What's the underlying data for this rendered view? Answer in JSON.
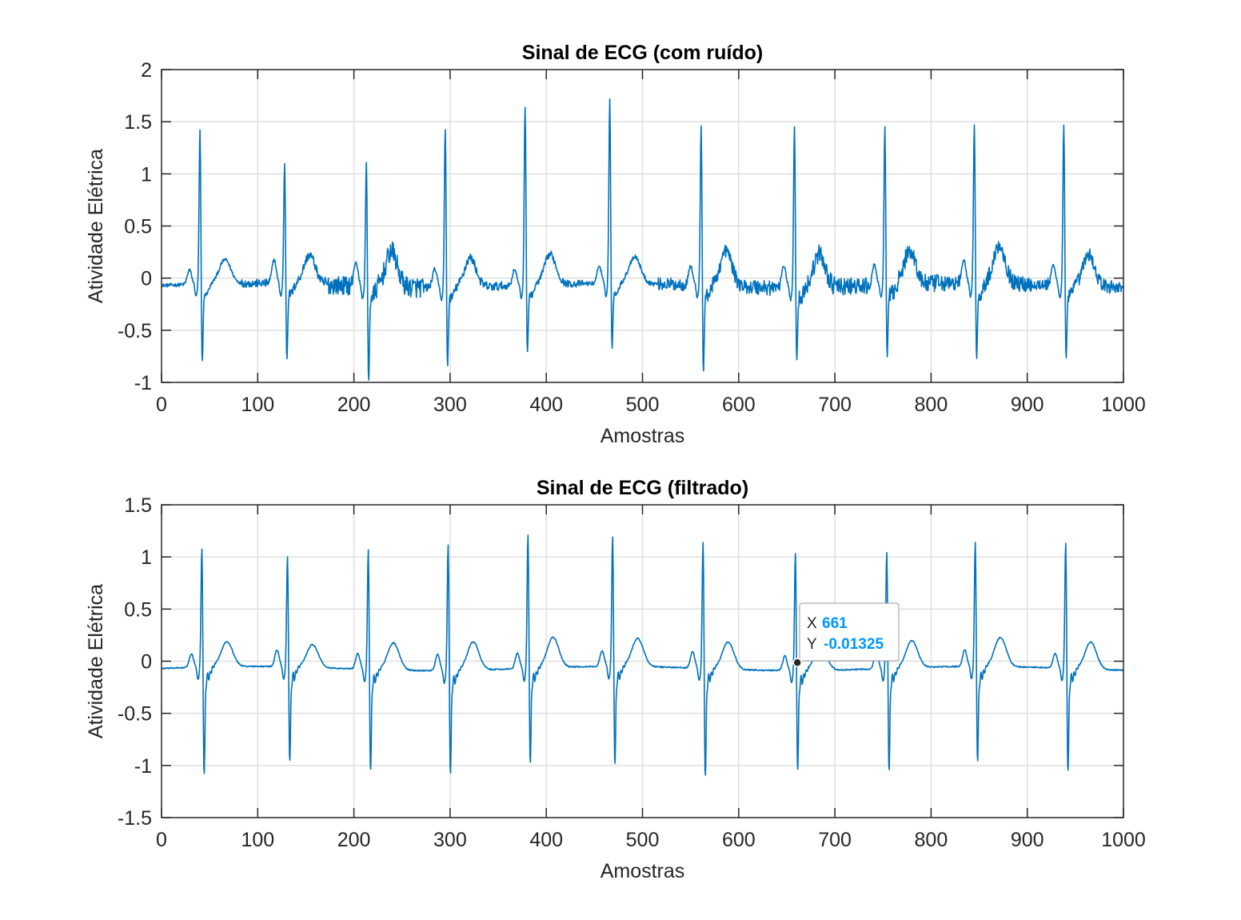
{
  "colors": {
    "series": "#0072BD",
    "datatip_value": "#0095FF",
    "axes": "#262626",
    "grid": "#dfdfdf"
  },
  "chart_data": [
    {
      "type": "line",
      "title": "Sinal de ECG (com ruído)",
      "xlabel": "Amostras",
      "ylabel": "Atividade Elétrica",
      "xlim": [
        0,
        1000
      ],
      "ylim": [
        -1,
        2
      ],
      "xticks": [
        0,
        100,
        200,
        300,
        400,
        500,
        600,
        700,
        800,
        900,
        1000
      ],
      "yticks": [
        -1,
        -0.5,
        0,
        0.5,
        1,
        1.5,
        2
      ],
      "xtick_labels": [
        "0",
        "100",
        "200",
        "300",
        "400",
        "500",
        "600",
        "700",
        "800",
        "900",
        "1000"
      ],
      "ytick_labels": [
        "-1",
        "-0.5",
        "0",
        "0.5",
        "1",
        "1.5",
        "2"
      ],
      "grid": true,
      "noisy": true,
      "beats": [
        {
          "r": 40,
          "peak": 1.47,
          "s": -0.82,
          "q": 0.14,
          "t": 0.23,
          "noise": 0.01
        },
        {
          "r": 128,
          "peak": 1.14,
          "s": -0.78,
          "q": 0.23,
          "t": 0.28,
          "noise": 0.04
        },
        {
          "r": 213,
          "peak": 1.18,
          "s": -0.96,
          "q": 0.23,
          "t": 0.34,
          "noise": 0.09
        },
        {
          "r": 295,
          "peak": 1.53,
          "s": -0.82,
          "q": 0.18,
          "t": 0.28,
          "noise": 0.04
        },
        {
          "r": 378,
          "peak": 1.72,
          "s": -0.71,
          "q": 0.16,
          "t": 0.29,
          "noise": 0.03
        },
        {
          "r": 466,
          "peak": 1.76,
          "s": -0.68,
          "q": 0.17,
          "t": 0.26,
          "noise": 0.02
        },
        {
          "r": 561,
          "peak": 1.52,
          "s": -0.9,
          "q": 0.18,
          "t": 0.34,
          "noise": 0.06
        },
        {
          "r": 658,
          "peak": 1.53,
          "s": -0.76,
          "q": 0.21,
          "t": 0.32,
          "noise": 0.08
        },
        {
          "r": 752,
          "peak": 1.52,
          "s": -0.74,
          "q": 0.2,
          "t": 0.33,
          "noise": 0.08
        },
        {
          "r": 845,
          "peak": 1.52,
          "s": -0.78,
          "q": 0.22,
          "t": 0.37,
          "noise": 0.07
        },
        {
          "r": 938,
          "peak": 1.55,
          "s": -0.78,
          "q": 0.19,
          "t": 0.3,
          "noise": 0.06
        }
      ]
    },
    {
      "type": "line",
      "title": "Sinal de ECG (filtrado)",
      "xlabel": "Amostras",
      "ylabel": "Atividade Elétrica",
      "xlim": [
        0,
        1000
      ],
      "ylim": [
        -1.5,
        1.5
      ],
      "xticks": [
        0,
        100,
        200,
        300,
        400,
        500,
        600,
        700,
        800,
        900,
        1000
      ],
      "yticks": [
        -1.5,
        -1,
        -0.5,
        0,
        0.5,
        1,
        1.5
      ],
      "xtick_labels": [
        "0",
        "100",
        "200",
        "300",
        "400",
        "500",
        "600",
        "700",
        "800",
        "900",
        "1000"
      ],
      "ytick_labels": [
        "-1.5",
        "-1",
        "-0.5",
        "0",
        "0.5",
        "1",
        "1.5"
      ],
      "grid": true,
      "noisy": false,
      "beats": [
        {
          "r": 42,
          "peak": 1.15,
          "s": -1.1,
          "q": 0.13,
          "t": 0.24,
          "noise": 0
        },
        {
          "r": 131,
          "peak": 1.07,
          "s": -0.97,
          "q": 0.16,
          "t": 0.22,
          "noise": 0
        },
        {
          "r": 215,
          "peak": 1.16,
          "s": -1.04,
          "q": 0.15,
          "t": 0.26,
          "noise": 0
        },
        {
          "r": 298,
          "peak": 1.22,
          "s": -1.06,
          "q": 0.16,
          "t": 0.27,
          "noise": 0
        },
        {
          "r": 381,
          "peak": 1.29,
          "s": -0.98,
          "q": 0.15,
          "t": 0.29,
          "noise": 0
        },
        {
          "r": 469,
          "peak": 1.25,
          "s": -1.01,
          "q": 0.15,
          "t": 0.27,
          "noise": 0
        },
        {
          "r": 563,
          "peak": 1.23,
          "s": -1.11,
          "q": 0.16,
          "t": 0.26,
          "noise": 0
        },
        {
          "r": 659,
          "peak": 1.14,
          "s": -1.02,
          "q": 0.14,
          "t": 0.26,
          "noise": 0
        },
        {
          "r": 754,
          "peak": 1.13,
          "s": -1.05,
          "q": 0.16,
          "t": 0.26,
          "noise": 0
        },
        {
          "r": 846,
          "peak": 1.2,
          "s": -0.98,
          "q": 0.16,
          "t": 0.28,
          "noise": 0
        },
        {
          "r": 940,
          "peak": 1.22,
          "s": -1.06,
          "q": 0.14,
          "t": 0.26,
          "noise": 0
        }
      ],
      "datatip": {
        "x_key": "X",
        "x_value": "661",
        "y_key": "Y",
        "y_value": "-0.01325",
        "x": 661,
        "y": -0.01325
      }
    }
  ]
}
